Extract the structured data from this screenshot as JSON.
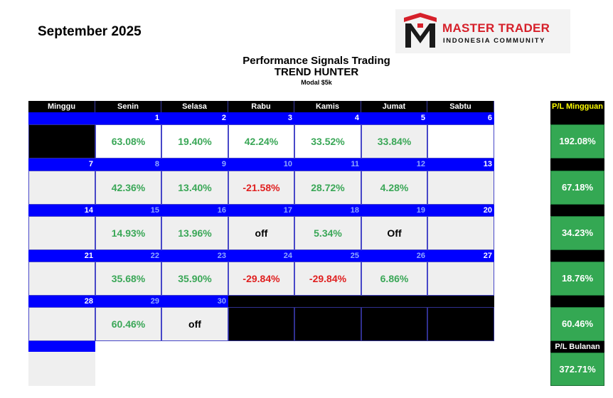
{
  "header": {
    "month": "September 2025",
    "title": "Performance Signals Trading",
    "subtitle": "TREND HUNTER",
    "capital": "Modal $5k"
  },
  "logo": {
    "name": "MASTER TRADER",
    "tagline": "INDONESIA COMMUNITY",
    "brand_color": "#d6202a"
  },
  "days": [
    "Minggu",
    "Senin",
    "Selasa",
    "Rabu",
    "Kamis",
    "Jumat",
    "Sabtu"
  ],
  "weeks": [
    {
      "dates": [
        "",
        "1",
        "2",
        "3",
        "4",
        "5",
        "6"
      ],
      "values": [
        "",
        "63.08%",
        "19.40%",
        "42.24%",
        "33.52%",
        "33.84%",
        ""
      ]
    },
    {
      "dates": [
        "7",
        "8",
        "9",
        "10",
        "11",
        "12",
        "13"
      ],
      "values": [
        "",
        "42.36%",
        "13.40%",
        "-21.58%",
        "28.72%",
        "4.28%",
        ""
      ]
    },
    {
      "dates": [
        "14",
        "15",
        "16",
        "17",
        "18",
        "19",
        "20"
      ],
      "values": [
        "",
        "14.93%",
        "13.96%",
        "off",
        "5.34%",
        "Off",
        ""
      ]
    },
    {
      "dates": [
        "21",
        "22",
        "23",
        "24",
        "25",
        "26",
        "27"
      ],
      "values": [
        "",
        "35.68%",
        "35.90%",
        "-29.84%",
        "-29.84%",
        "6.86%",
        ""
      ]
    },
    {
      "dates": [
        "28",
        "29",
        "30",
        "",
        "",
        "",
        ""
      ],
      "values": [
        "",
        "60.46%",
        "off",
        "",
        "",
        "",
        ""
      ]
    }
  ],
  "weekly": {
    "label": "P/L Mingguan",
    "values": [
      "192.08%",
      "67.18%",
      "34.23%",
      "18.76%",
      "60.46%"
    ]
  },
  "monthly": {
    "label": "P/L Bulanan",
    "value": "372.71%"
  },
  "colors": {
    "positive": "#3aa757",
    "negative": "#e02020",
    "date_bar": "#0000ff",
    "pl_box": "#34a853"
  }
}
